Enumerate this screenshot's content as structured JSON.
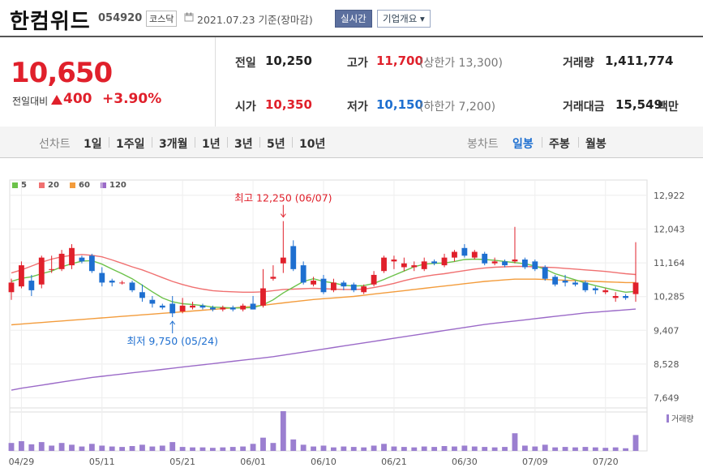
{
  "header": {
    "name": "한컴위드",
    "code": "054920",
    "market": "코스닥",
    "date": "2021.07.23  기준(장마감)",
    "realtime_btn": "실시간",
    "corp_btn": "기업개요 ▾"
  },
  "quote": {
    "price": "10,650",
    "change_label": "전일대비",
    "change": "400",
    "change_pct": "+3.90%",
    "prev_label": "전일",
    "prev": "10,250",
    "open_label": "시가",
    "open": "10,350",
    "high_label": "고가",
    "high": "11,700",
    "upper_limit": "(상한가 13,300)",
    "low_label": "저가",
    "low": "10,150",
    "lower_limit": "(하한가 7,200)",
    "volume_label": "거래량",
    "volume": "1,411,774",
    "amount_label": "거래대금",
    "amount": "15,549",
    "amount_unit": "백만"
  },
  "toolbar": {
    "line_chart_label": "선차트",
    "periods": [
      "1일",
      "1주일",
      "3개월",
      "1년",
      "3년",
      "5년",
      "10년"
    ],
    "candle_label": "봉차트",
    "candle_types": [
      "일봉",
      "주봉",
      "월봉"
    ],
    "active_candle": "일봉"
  },
  "colors": {
    "up": "#e0202b",
    "down": "#1e6fd0",
    "ma5": "#6cc24a",
    "ma20": "#f07070",
    "ma60": "#f39c3c",
    "ma120": "#9b6ac8",
    "volume": "#9b7fd0"
  },
  "chart_data": {
    "type": "candlestick",
    "legend": [
      {
        "name": "5",
        "color": "#6cc24a"
      },
      {
        "name": "20",
        "color": "#f07070"
      },
      {
        "name": "60",
        "color": "#f39c3c"
      },
      {
        "name": "120",
        "color": "#9b6ac8"
      }
    ],
    "y_ticks": [
      "12,922",
      "12,043",
      "11,164",
      "10,285",
      "9,407",
      "8,528",
      "7,649"
    ],
    "y_tick_values": [
      12922,
      12043,
      11164,
      10285,
      9407,
      8528,
      7649
    ],
    "ylim": [
      7450,
      13150
    ],
    "x_ticks": [
      {
        "label": "04/29",
        "index": 1
      },
      {
        "label": "05/11",
        "index": 9
      },
      {
        "label": "05/21",
        "index": 17
      },
      {
        "label": "06/01",
        "index": 24
      },
      {
        "label": "06/10",
        "index": 31
      },
      {
        "label": "06/21",
        "index": 38
      },
      {
        "label": "06/30",
        "index": 45
      },
      {
        "label": "07/09",
        "index": 52
      },
      {
        "label": "07/20",
        "index": 59
      }
    ],
    "annotations": {
      "high": {
        "text": "최고 12,250 (06/07)",
        "index": 27,
        "value": 12250
      },
      "low": {
        "text": "최저 9,750 (05/24)",
        "index": 16,
        "value": 9750
      }
    },
    "volume_legend": "거래량",
    "candles": [
      {
        "o": 10400,
        "h": 10750,
        "l": 10200,
        "c": 10650
      },
      {
        "o": 10550,
        "h": 11200,
        "l": 10500,
        "c": 11100
      },
      {
        "o": 10700,
        "h": 10850,
        "l": 10300,
        "c": 10450
      },
      {
        "o": 10600,
        "h": 11350,
        "l": 10500,
        "c": 11300
      },
      {
        "o": 11000,
        "h": 11350,
        "l": 10900,
        "c": 11000
      },
      {
        "o": 11000,
        "h": 11500,
        "l": 10950,
        "c": 11400
      },
      {
        "o": 11100,
        "h": 11650,
        "l": 11000,
        "c": 11550
      },
      {
        "o": 11300,
        "h": 11350,
        "l": 11150,
        "c": 11200
      },
      {
        "o": 11350,
        "h": 11400,
        "l": 10900,
        "c": 10950
      },
      {
        "o": 10900,
        "h": 11050,
        "l": 10550,
        "c": 10650
      },
      {
        "o": 10700,
        "h": 10750,
        "l": 10550,
        "c": 10650
      },
      {
        "o": 10650,
        "h": 10700,
        "l": 10600,
        "c": 10650
      },
      {
        "o": 10650,
        "h": 10700,
        "l": 10400,
        "c": 10450
      },
      {
        "o": 10400,
        "h": 10600,
        "l": 10150,
        "c": 10250
      },
      {
        "o": 10200,
        "h": 10300,
        "l": 10000,
        "c": 10100
      },
      {
        "o": 10050,
        "h": 10100,
        "l": 9950,
        "c": 10000
      },
      {
        "o": 10100,
        "h": 10300,
        "l": 9750,
        "c": 9850
      },
      {
        "o": 9900,
        "h": 10250,
        "l": 9850,
        "c": 10050
      },
      {
        "o": 10000,
        "h": 10150,
        "l": 9950,
        "c": 10050
      },
      {
        "o": 10050,
        "h": 10100,
        "l": 9950,
        "c": 10000
      },
      {
        "o": 10000,
        "h": 10050,
        "l": 9900,
        "c": 9950
      },
      {
        "o": 9950,
        "h": 10050,
        "l": 9900,
        "c": 10000
      },
      {
        "o": 10000,
        "h": 10050,
        "l": 9900,
        "c": 9950
      },
      {
        "o": 9950,
        "h": 10100,
        "l": 9900,
        "c": 10050
      },
      {
        "o": 10100,
        "h": 10300,
        "l": 9950,
        "c": 9950
      },
      {
        "o": 10050,
        "h": 11000,
        "l": 10000,
        "c": 10500
      },
      {
        "o": 10750,
        "h": 11100,
        "l": 10700,
        "c": 10800
      },
      {
        "o": 11150,
        "h": 12250,
        "l": 10900,
        "c": 11300
      },
      {
        "o": 11600,
        "h": 11750,
        "l": 10950,
        "c": 11000
      },
      {
        "o": 11100,
        "h": 11200,
        "l": 10600,
        "c": 10650
      },
      {
        "o": 10600,
        "h": 10800,
        "l": 10550,
        "c": 10700
      },
      {
        "o": 10750,
        "h": 10850,
        "l": 10350,
        "c": 10400
      },
      {
        "o": 10450,
        "h": 10750,
        "l": 10400,
        "c": 10650
      },
      {
        "o": 10650,
        "h": 10700,
        "l": 10450,
        "c": 10550
      },
      {
        "o": 10600,
        "h": 10650,
        "l": 10400,
        "c": 10450
      },
      {
        "o": 10400,
        "h": 10600,
        "l": 10350,
        "c": 10550
      },
      {
        "o": 10600,
        "h": 10950,
        "l": 10550,
        "c": 10850
      },
      {
        "o": 10950,
        "h": 11350,
        "l": 10900,
        "c": 11300
      },
      {
        "o": 11200,
        "h": 11350,
        "l": 11000,
        "c": 11250
      },
      {
        "o": 11050,
        "h": 11300,
        "l": 10950,
        "c": 11150
      },
      {
        "o": 11050,
        "h": 11200,
        "l": 10950,
        "c": 11100
      },
      {
        "o": 11000,
        "h": 11300,
        "l": 10950,
        "c": 11200
      },
      {
        "o": 11200,
        "h": 11250,
        "l": 11100,
        "c": 11150
      },
      {
        "o": 11100,
        "h": 11400,
        "l": 11050,
        "c": 11300
      },
      {
        "o": 11300,
        "h": 11500,
        "l": 11200,
        "c": 11450
      },
      {
        "o": 11550,
        "h": 11650,
        "l": 11300,
        "c": 11350
      },
      {
        "o": 11300,
        "h": 11500,
        "l": 11250,
        "c": 11450
      },
      {
        "o": 11400,
        "h": 11450,
        "l": 11100,
        "c": 11150
      },
      {
        "o": 11150,
        "h": 11300,
        "l": 11100,
        "c": 11200
      },
      {
        "o": 11200,
        "h": 11250,
        "l": 11050,
        "c": 11100
      },
      {
        "o": 11200,
        "h": 12100,
        "l": 11150,
        "c": 11250
      },
      {
        "o": 11250,
        "h": 11300,
        "l": 11000,
        "c": 11050
      },
      {
        "o": 11200,
        "h": 11250,
        "l": 10950,
        "c": 11000
      },
      {
        "o": 11050,
        "h": 11100,
        "l": 10700,
        "c": 10750
      },
      {
        "o": 10800,
        "h": 10850,
        "l": 10550,
        "c": 10600
      },
      {
        "o": 10700,
        "h": 10850,
        "l": 10550,
        "c": 10650
      },
      {
        "o": 10650,
        "h": 10700,
        "l": 10550,
        "c": 10600
      },
      {
        "o": 10650,
        "h": 10700,
        "l": 10400,
        "c": 10450
      },
      {
        "o": 10500,
        "h": 10550,
        "l": 10350,
        "c": 10450
      },
      {
        "o": 10400,
        "h": 10500,
        "l": 10350,
        "c": 10450
      },
      {
        "o": 10250,
        "h": 10400,
        "l": 10150,
        "c": 10300
      },
      {
        "o": 10300,
        "h": 10350,
        "l": 10200,
        "c": 10250
      },
      {
        "o": 10350,
        "h": 11700,
        "l": 10150,
        "c": 10650
      }
    ],
    "ma5": [
      10680,
      10760,
      10800,
      10880,
      10950,
      11060,
      11140,
      11210,
      11220,
      11130,
      11000,
      10880,
      10750,
      10580,
      10410,
      10250,
      10150,
      10100,
      10080,
      10050,
      10010,
      10000,
      9990,
      9990,
      10000,
      10070,
      10200,
      10380,
      10530,
      10680,
      10750,
      10680,
      10640,
      10580,
      10560,
      10570,
      10630,
      10730,
      10840,
      10950,
      11060,
      11130,
      11150,
      11160,
      11200,
      11250,
      11260,
      11250,
      11230,
      11200,
      11170,
      11140,
      11080,
      11000,
      10880,
      10800,
      10720,
      10640,
      10570,
      10510,
      10450,
      10400,
      10420
    ],
    "ma20": [
      10900,
      10980,
      11080,
      11180,
      11260,
      11320,
      11360,
      11380,
      11360,
      11320,
      11240,
      11150,
      11060,
      10980,
      10880,
      10780,
      10680,
      10600,
      10530,
      10480,
      10440,
      10420,
      10410,
      10400,
      10400,
      10410,
      10440,
      10470,
      10480,
      10490,
      10500,
      10490,
      10480,
      10470,
      10470,
      10480,
      10520,
      10570,
      10630,
      10700,
      10760,
      10810,
      10850,
      10880,
      10920,
      10960,
      11000,
      11030,
      11050,
      11060,
      11070,
      11070,
      11060,
      11050,
      11040,
      11020,
      11000,
      10980,
      10960,
      10940,
      10910,
      10880,
      10860
    ],
    "ma60": [
      9550,
      9570,
      9590,
      9610,
      9630,
      9650,
      9670,
      9690,
      9710,
      9730,
      9750,
      9770,
      9790,
      9810,
      9830,
      9850,
      9870,
      9890,
      9910,
      9930,
      9950,
      9970,
      9990,
      10010,
      10030,
      10060,
      10090,
      10120,
      10150,
      10180,
      10210,
      10230,
      10250,
      10270,
      10290,
      10320,
      10350,
      10380,
      10410,
      10440,
      10470,
      10500,
      10530,
      10560,
      10590,
      10620,
      10650,
      10680,
      10700,
      10720,
      10740,
      10740,
      10740,
      10730,
      10720,
      10710,
      10700,
      10690,
      10680,
      10670,
      10660,
      10650,
      10650
    ],
    "ma120": [
      7850,
      7900,
      7940,
      7980,
      8020,
      8060,
      8100,
      8140,
      8180,
      8210,
      8240,
      8270,
      8300,
      8330,
      8360,
      8390,
      8420,
      8450,
      8480,
      8510,
      8540,
      8570,
      8600,
      8630,
      8660,
      8690,
      8720,
      8760,
      8800,
      8840,
      8880,
      8920,
      8960,
      9000,
      9040,
      9080,
      9120,
      9160,
      9200,
      9240,
      9280,
      9320,
      9360,
      9400,
      9440,
      9480,
      9520,
      9560,
      9590,
      9620,
      9650,
      9680,
      9710,
      9740,
      9770,
      9800,
      9830,
      9860,
      9880,
      9900,
      9920,
      9940,
      9960
    ],
    "volumes": [
      18,
      22,
      15,
      20,
      12,
      18,
      14,
      10,
      16,
      12,
      10,
      9,
      11,
      14,
      10,
      12,
      20,
      9,
      8,
      8,
      7,
      8,
      9,
      10,
      16,
      30,
      18,
      90,
      26,
      14,
      10,
      12,
      8,
      10,
      9,
      8,
      12,
      16,
      10,
      9,
      8,
      10,
      9,
      11,
      10,
      12,
      10,
      9,
      8,
      9,
      40,
      12,
      10,
      14,
      8,
      9,
      8,
      9,
      8,
      7,
      8,
      6,
      36
    ]
  }
}
